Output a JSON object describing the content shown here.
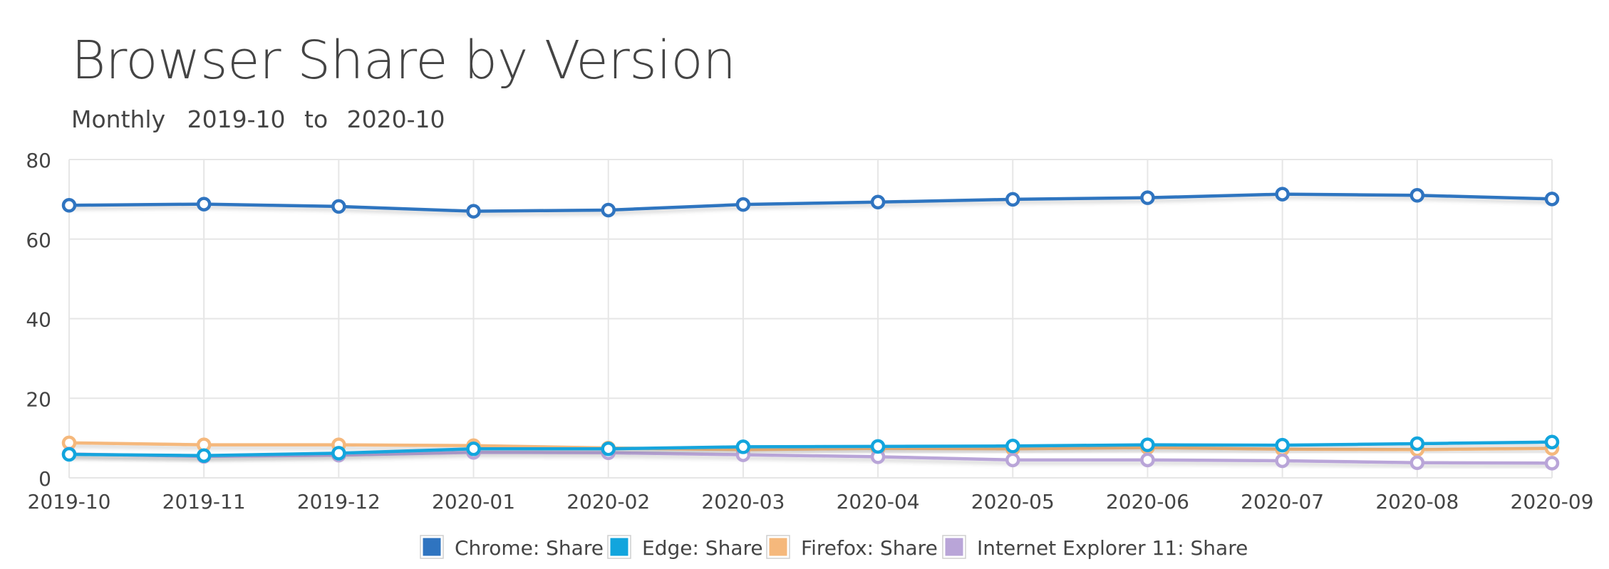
{
  "header": {
    "title": "Browser Share by Version",
    "period": "Monthly",
    "from": "2019-10",
    "to_word": "to",
    "to": "2020-10"
  },
  "chart_data": {
    "type": "line",
    "title": "Browser Share by Version",
    "x": [
      "2019-10",
      "2019-11",
      "2019-12",
      "2020-01",
      "2020-02",
      "2020-03",
      "2020-04",
      "2020-05",
      "2020-06",
      "2020-07",
      "2020-08",
      "2020-09"
    ],
    "ylim": [
      0,
      80
    ],
    "yticks": [
      0,
      20,
      40,
      60,
      80
    ],
    "grid": true,
    "legend_position": "bottom-center",
    "series": [
      {
        "name": "Chrome: Share",
        "color": "#2f74c0",
        "values": [
          68.5,
          68.8,
          68.2,
          67.0,
          67.3,
          68.7,
          69.3,
          70.0,
          70.4,
          71.3,
          71.0,
          70.1
        ]
      },
      {
        "name": "Edge: Share",
        "color": "#12a5dd",
        "values": [
          5.9,
          5.6,
          6.2,
          7.3,
          7.3,
          7.8,
          7.9,
          8.0,
          8.3,
          8.2,
          8.6,
          9.0
        ]
      },
      {
        "name": "Firefox: Share",
        "color": "#f5b87c",
        "values": [
          8.8,
          8.3,
          8.3,
          8.1,
          7.5,
          7.1,
          7.4,
          7.3,
          7.6,
          7.2,
          7.1,
          7.4
        ]
      },
      {
        "name": "Internet Explorer 11: Share",
        "color": "#b9a5d8",
        "values": [
          6.0,
          5.4,
          5.7,
          6.4,
          6.3,
          5.8,
          5.3,
          4.5,
          4.5,
          4.3,
          3.8,
          3.7
        ]
      }
    ]
  }
}
